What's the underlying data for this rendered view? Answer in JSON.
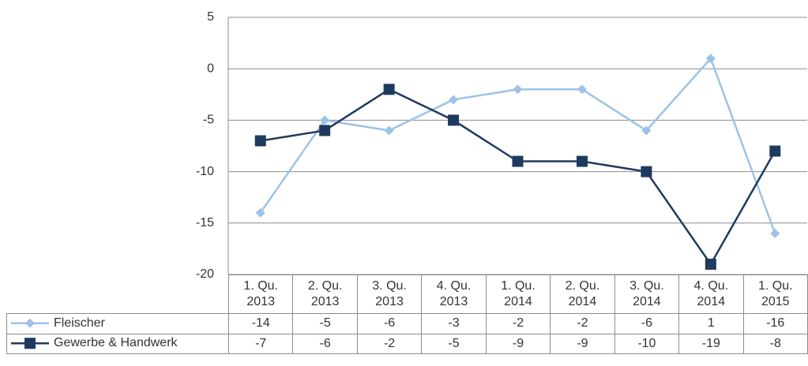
{
  "chart_data": {
    "type": "line",
    "categories": [
      "1. Qu.\n2013",
      "2. Qu.\n2013",
      "3. Qu.\n2013",
      "4. Qu.\n2013",
      "1. Qu.\n2014",
      "2. Qu.\n2014",
      "3. Qu.\n2014",
      "4. Qu.\n2014",
      "1. Qu.\n2015"
    ],
    "series": [
      {
        "name": "Fleischer",
        "color": "#9dc3e6",
        "marker": "diamond",
        "values": [
          -14,
          -5,
          -6,
          -3,
          -2,
          -2,
          -6,
          1,
          -16
        ]
      },
      {
        "name": "Gewerbe & Handwerk",
        "color": "#1f3a5f",
        "marker": "square",
        "values": [
          -7,
          -6,
          -2,
          -5,
          -9,
          -9,
          -10,
          -19,
          -8
        ]
      }
    ],
    "ylim": [
      -20,
      5
    ],
    "yticks": [
      -20,
      -15,
      -10,
      -5,
      0,
      5
    ],
    "grid": true
  }
}
